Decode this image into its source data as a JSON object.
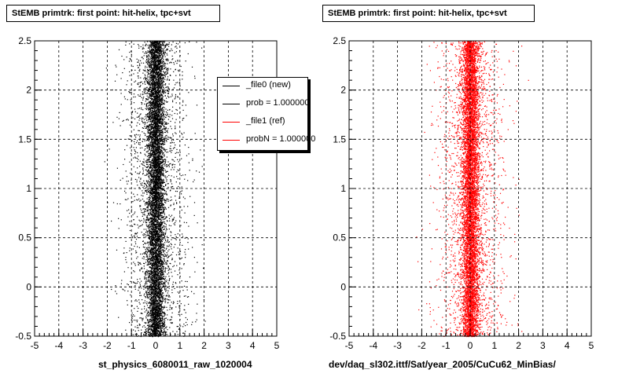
{
  "chart_data": [
    {
      "type": "scatter",
      "title": "StEMB primtrk: first point: hit-helix, tpc+svt",
      "xlabel": "st_physics_6080011_raw_1020004",
      "ylabel": "",
      "xlim": [
        -5,
        5
      ],
      "ylim": [
        -0.5,
        2.5
      ],
      "xticks": [
        -5,
        -4,
        -3,
        -2,
        -1,
        0,
        1,
        2,
        3,
        4,
        5
      ],
      "yticks": [
        -0.5,
        0,
        0.5,
        1,
        1.5,
        2,
        2.5
      ],
      "grid": true,
      "series": [
        {
          "name": "_file0 (new)",
          "color": "#000000",
          "center_x": 0.0,
          "core_sigma_x": 0.18,
          "halo_sigma_x": 0.7,
          "y_range": [
            -0.5,
            2.5
          ]
        }
      ],
      "legend": {
        "placement": "top-right",
        "entries": [
          {
            "label": "_file0 (new)",
            "color": "#000000"
          },
          {
            "label": "prob = 1.000000",
            "color": "#000000"
          },
          {
            "label": "_file1 (ref)",
            "color": "#ff0000"
          },
          {
            "label": "probN = 1.000000",
            "color": "#ff0000"
          }
        ]
      }
    },
    {
      "type": "scatter",
      "title": "StEMB primtrk: first point: hit-helix, tpc+svt",
      "xlabel": "dev/daq_sl302.ittf/Sat/year_2005/CuCu62_MinBias/",
      "ylabel": "",
      "xlim": [
        -5,
        5
      ],
      "ylim": [
        -0.5,
        2.5
      ],
      "xticks": [
        -5,
        -4,
        -3,
        -2,
        -1,
        0,
        1,
        2,
        3,
        4,
        5
      ],
      "yticks": [
        -0.5,
        0,
        0.5,
        1,
        1.5,
        2,
        2.5
      ],
      "grid": true,
      "series": [
        {
          "name": "_file1 (ref)",
          "color": "#ff0000",
          "center_x": 0.0,
          "core_sigma_x": 0.18,
          "halo_sigma_x": 0.7,
          "y_range": [
            -0.5,
            2.5
          ]
        }
      ]
    }
  ]
}
